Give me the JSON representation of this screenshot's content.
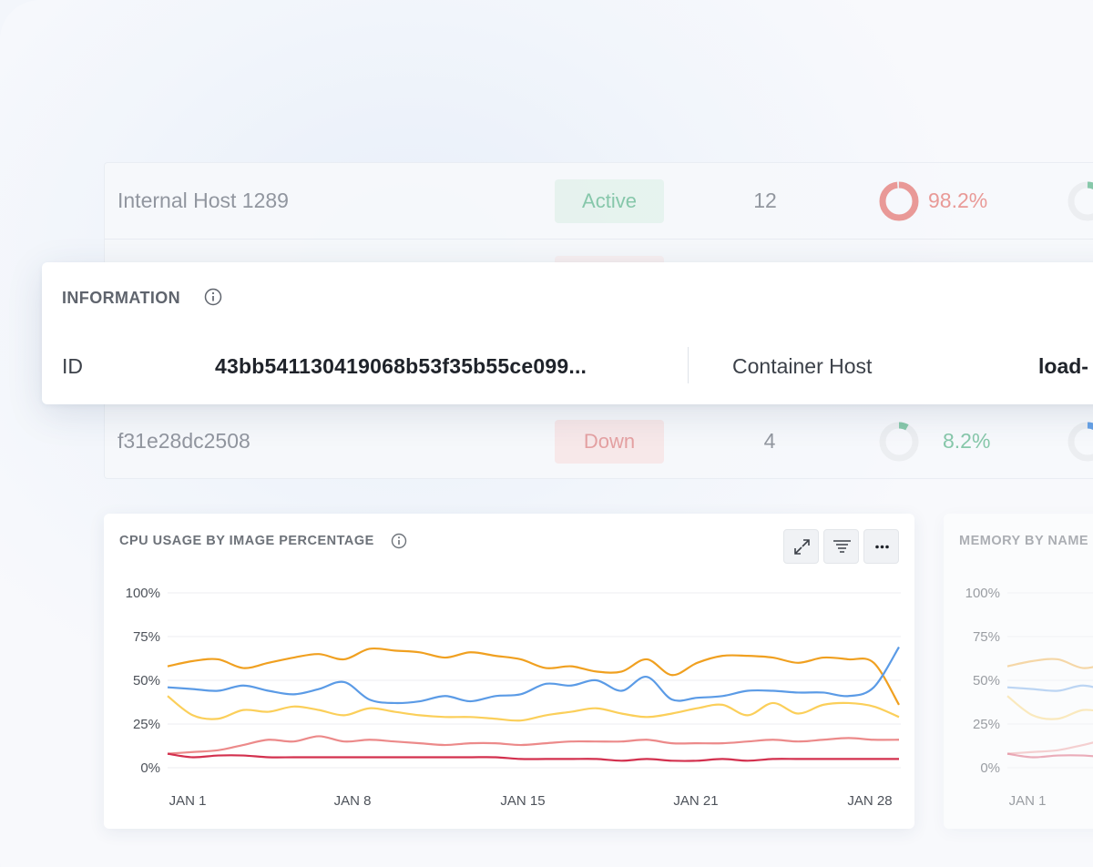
{
  "hosts": [
    {
      "name": "Internal Host 1289",
      "status": "Active",
      "count": "12",
      "usage": "98.2%",
      "usage_value": 98.2,
      "usage_color": "#e8928f"
    },
    {
      "name": "",
      "status": "",
      "count": "",
      "usage": "",
      "usage_value": 0,
      "usage_color": ""
    },
    {
      "name": "f31e28dc2508",
      "status": "Down",
      "count": "4",
      "usage": "8.2%",
      "usage_value": 8.2,
      "usage_color": "#7ec4a4"
    }
  ],
  "information": {
    "title": "INFORMATION",
    "id_label": "ID",
    "id_value": "43bb541130419068b53f35b55ce099...",
    "host_label": "Container Host",
    "host_value": "load-"
  },
  "cpu_chart": {
    "title": "CPU USAGE BY IMAGE PERCENTAGE",
    "tools": [
      "expand-icon",
      "filter-icon",
      "more-icon"
    ]
  },
  "memory_chart": {
    "title": "MEMORY BY NAME"
  },
  "chart_data": [
    {
      "type": "line",
      "title": "CPU USAGE BY IMAGE PERCENTAGE",
      "x_ticks": [
        "JAN 1",
        "JAN 8",
        "JAN 15",
        "JAN 21",
        "JAN 28"
      ],
      "y_ticks": [
        "100%",
        "75%",
        "50%",
        "25%",
        "0%"
      ],
      "ylim": [
        0,
        100
      ],
      "x": [
        1,
        2,
        3,
        4,
        5,
        6,
        7,
        8,
        9,
        10,
        11,
        12,
        13,
        14,
        15,
        16,
        17,
        18,
        19,
        20,
        21,
        22,
        23,
        24,
        25,
        26,
        27,
        28,
        29,
        30
      ],
      "series": [
        {
          "color": "#f0a020",
          "values": [
            58,
            61,
            62,
            57,
            60,
            63,
            65,
            62,
            68,
            67,
            66,
            63,
            66,
            64,
            62,
            57,
            58,
            55,
            55,
            62,
            53,
            60,
            64,
            64,
            63,
            60,
            63,
            62,
            60,
            36
          ]
        },
        {
          "color": "#5b9be6",
          "values": [
            46,
            45,
            44,
            47,
            44,
            42,
            45,
            49,
            39,
            37,
            38,
            41,
            38,
            41,
            42,
            48,
            47,
            50,
            44,
            52,
            39,
            40,
            41,
            44,
            44,
            43,
            43,
            41,
            46,
            69
          ]
        },
        {
          "color": "#fbcf5a",
          "values": [
            41,
            30,
            28,
            33,
            32,
            35,
            33,
            30,
            34,
            32,
            30,
            29,
            29,
            28,
            27,
            30,
            32,
            34,
            31,
            29,
            31,
            34,
            36,
            30,
            37,
            31,
            36,
            37,
            35,
            29
          ]
        },
        {
          "color": "#ec8a8a",
          "values": [
            8,
            9,
            10,
            13,
            16,
            15,
            18,
            15,
            16,
            15,
            14,
            13,
            14,
            14,
            13,
            14,
            15,
            15,
            15,
            16,
            14,
            14,
            14,
            15,
            16,
            15,
            16,
            17,
            16,
            16
          ]
        },
        {
          "color": "#d3304e",
          "values": [
            8,
            6,
            7,
            7,
            6,
            6,
            6,
            6,
            6,
            6,
            6,
            6,
            6,
            6,
            5,
            5,
            5,
            5,
            4,
            5,
            4,
            4,
            5,
            4,
            5,
            5,
            5,
            5,
            5,
            5
          ]
        }
      ]
    },
    {
      "type": "line",
      "title": "MEMORY BY NAME",
      "x_ticks": [
        "JAN 1"
      ],
      "y_ticks": [
        "100%",
        "75%",
        "50%",
        "25%",
        "0%"
      ],
      "ylim": [
        0,
        100
      ]
    }
  ]
}
